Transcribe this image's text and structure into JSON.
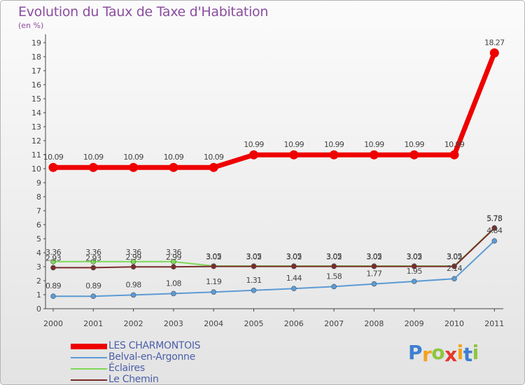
{
  "chart_data": {
    "type": "line",
    "title": "Evolution du Taux de Taxe d'Habitation",
    "ylabel": "(en %)",
    "categories": [
      "2000",
      "2001",
      "2002",
      "2003",
      "2004",
      "2005",
      "2006",
      "2007",
      "2008",
      "2009",
      "2010",
      "2011"
    ],
    "ylim": [
      0,
      19
    ],
    "yticks": [
      0,
      1,
      2,
      3,
      4,
      5,
      6,
      7,
      8,
      9,
      10,
      11,
      12,
      13,
      14,
      15,
      16,
      17,
      18,
      19
    ],
    "series": [
      {
        "name": "LES CHARMONTOIS",
        "color": "#ee0000",
        "values": [
          10.09,
          10.09,
          10.09,
          10.09,
          10.09,
          10.99,
          10.99,
          10.99,
          10.99,
          10.99,
          10.99,
          18.27
        ],
        "labels": [
          "10.09",
          "10.09",
          "10.09",
          "10.09",
          "10.09",
          "10.99",
          "10.99",
          "10.99",
          "10.99",
          "10.99",
          "10.99",
          "18.27"
        ]
      },
      {
        "name": "Belval-en-Argonne",
        "color": "#5b9bd5",
        "values": [
          0.89,
          0.89,
          0.98,
          1.08,
          1.19,
          1.31,
          1.44,
          1.58,
          1.77,
          1.95,
          2.14,
          4.84
        ],
        "labels": [
          "0.89",
          "0.89",
          "0.98",
          "1.08",
          "1.19",
          "1.31",
          "1.44",
          "1.58",
          "1.77",
          "1.95",
          "2.14",
          "4.84"
        ]
      },
      {
        "name": "Éclaires",
        "color": "#7ed957",
        "values": [
          3.36,
          3.36,
          3.36,
          3.36,
          3.05,
          3.05,
          3.05,
          3.05,
          3.05,
          3.05,
          3.05,
          5.78
        ],
        "labels": [
          "3.36",
          "3.36",
          "3.36",
          "3.36",
          "3.05",
          "3.05",
          "3.05",
          "3.05",
          "3.05",
          "3.05",
          "3.05",
          "5.78"
        ]
      },
      {
        "name": "Le Chemin",
        "color": "#7a2b2b",
        "values": [
          2.93,
          2.93,
          2.99,
          2.99,
          3.02,
          3.02,
          3.02,
          3.02,
          3.02,
          3.02,
          3.02,
          5.75
        ],
        "labels": [
          "2.93",
          "2.93",
          "2.99",
          "2.99",
          "3.02",
          "3.02",
          "3.02",
          "3.02",
          "3.02",
          "3.02",
          "3.02",
          "5.75"
        ]
      }
    ]
  },
  "logo": {
    "letters": [
      "P",
      "r",
      "o",
      "x",
      "i",
      "t",
      "i"
    ],
    "colors": [
      "#3d7fd1",
      "#f2a31c",
      "#8dc63f",
      "#e6372d",
      "#f2a31c",
      "#3d7fd1",
      "#8dc63f"
    ]
  }
}
